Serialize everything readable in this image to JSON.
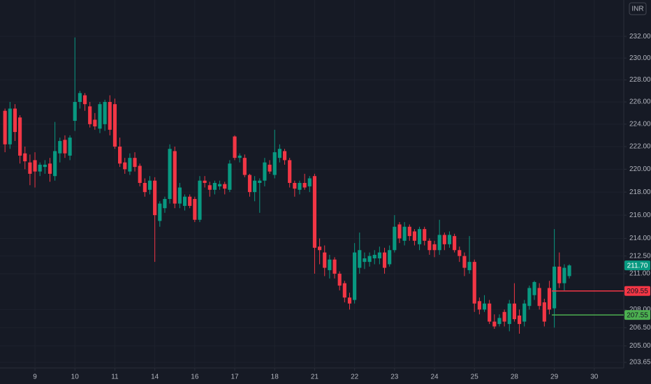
{
  "chart_data": {
    "type": "candlestick",
    "currency": "INR",
    "log_scale": true,
    "grid": true,
    "up_color": "#089981",
    "down_color": "#f23645",
    "xlim": [
      -1,
      123.9
    ],
    "ylim": [
      203.2,
      235.4
    ],
    "yticks": [
      {
        "value": 232,
        "label": "232.00"
      },
      {
        "value": 230,
        "label": "230.00"
      },
      {
        "value": 228,
        "label": "228.00"
      },
      {
        "value": 226,
        "label": "226.00"
      },
      {
        "value": 224,
        "label": "224.00"
      },
      {
        "value": 222,
        "label": "222.00"
      },
      {
        "value": 220,
        "label": "220.00"
      },
      {
        "value": 218,
        "label": "218.00"
      },
      {
        "value": 216,
        "label": "216.00"
      },
      {
        "value": 214,
        "label": "214.00"
      },
      {
        "value": 212.5,
        "label": "212.50"
      },
      {
        "value": 211,
        "label": "211.00"
      },
      {
        "value": 208,
        "label": "208.00"
      },
      {
        "value": 206.5,
        "label": "206.50"
      },
      {
        "value": 205,
        "label": "205.00"
      },
      {
        "value": 203.65,
        "label": "203.65"
      }
    ],
    "xticks": [
      {
        "value": 6,
        "label": "9"
      },
      {
        "value": 14,
        "label": "10"
      },
      {
        "value": 22,
        "label": "11"
      },
      {
        "value": 30,
        "label": "14"
      },
      {
        "value": 38,
        "label": "16"
      },
      {
        "value": 46,
        "label": "17"
      },
      {
        "value": 54,
        "label": "18"
      },
      {
        "value": 62,
        "label": "21"
      },
      {
        "value": 70,
        "label": "22"
      },
      {
        "value": 78,
        "label": "23"
      },
      {
        "value": 86,
        "label": "24"
      },
      {
        "value": 94,
        "label": "25"
      },
      {
        "value": 102,
        "label": "28"
      },
      {
        "value": 110,
        "label": "29"
      },
      {
        "value": 118,
        "label": "30"
      }
    ],
    "candles": [
      [
        225.2,
        225.4,
        221.5,
        222.2
      ],
      [
        222.2,
        226,
        221.8,
        225.4
      ],
      [
        225.4,
        225.8,
        222.5,
        223.3
      ],
      [
        224.6,
        224.8,
        220.5,
        221.2
      ],
      [
        221.4,
        222,
        220,
        220.7
      ],
      [
        220.6,
        221.3,
        218.6,
        219.6
      ],
      [
        220.8,
        221.5,
        218.4,
        219.8
      ],
      [
        219.8,
        220.6,
        219.4,
        220.4
      ],
      [
        220.2,
        220.8,
        219.6,
        220.4
      ],
      [
        220.5,
        221,
        218.9,
        219.6
      ],
      [
        219.4,
        224.2,
        219,
        221.6
      ],
      [
        221.4,
        222.8,
        220.6,
        222.5
      ],
      [
        222.6,
        223,
        221,
        221.4
      ],
      [
        221.2,
        223,
        220.8,
        222.8
      ],
      [
        224.3,
        231.9,
        223.4,
        226
      ],
      [
        226,
        227,
        225.4,
        226.8
      ],
      [
        226.6,
        226.8,
        225.2,
        225.8
      ],
      [
        225.6,
        226,
        223.7,
        224
      ],
      [
        224.4,
        225,
        223.5,
        223.8
      ],
      [
        223.6,
        226,
        223.2,
        225.8
      ],
      [
        224,
        226.2,
        223.4,
        226
      ],
      [
        226,
        226.6,
        223,
        223.5
      ],
      [
        225.8,
        226.3,
        221.8,
        222
      ],
      [
        222,
        222.8,
        220.2,
        220.5
      ],
      [
        220.6,
        221,
        219.6,
        220
      ],
      [
        219.8,
        221.4,
        219.5,
        221
      ],
      [
        221,
        221.5,
        219.8,
        220.2
      ],
      [
        220.3,
        220.5,
        218.5,
        218.8
      ],
      [
        218.8,
        219.2,
        217.6,
        218
      ],
      [
        218.2,
        219.4,
        217.8,
        219
      ],
      [
        219,
        219.3,
        212,
        216
      ],
      [
        215.5,
        217.2,
        215,
        217
      ],
      [
        216.6,
        217.6,
        216.2,
        217.4
      ],
      [
        217.4,
        222.2,
        217,
        221.8
      ],
      [
        221.6,
        222,
        216.6,
        217
      ],
      [
        217,
        218.8,
        216.6,
        218.4
      ],
      [
        216.8,
        217.8,
        216.4,
        217.6
      ],
      [
        217.6,
        217.8,
        216.6,
        216.8
      ],
      [
        217.4,
        217.6,
        215.4,
        215.6
      ],
      [
        215.6,
        219.4,
        215.4,
        219
      ],
      [
        219,
        219.4,
        218.4,
        218.8
      ],
      [
        218.6,
        218.9,
        217.6,
        218.2
      ],
      [
        218.2,
        219,
        217.8,
        218.8
      ],
      [
        218.5,
        219,
        218.2,
        218.7
      ],
      [
        218.7,
        218.9,
        217.8,
        218.3
      ],
      [
        218.2,
        220.8,
        218,
        220.5
      ],
      [
        222.9,
        223,
        220.8,
        221
      ],
      [
        221,
        221.4,
        220.6,
        221.2
      ],
      [
        221,
        221.3,
        219.3,
        219.5
      ],
      [
        219.5,
        219.6,
        217.6,
        218
      ],
      [
        218,
        219.4,
        217.2,
        219
      ],
      [
        218.8,
        219.2,
        216.2,
        219
      ],
      [
        219,
        221,
        218.5,
        220.6
      ],
      [
        220.4,
        220.8,
        219.6,
        219.8
      ],
      [
        219.5,
        223.5,
        219.2,
        221.5
      ],
      [
        221,
        222.2,
        220.6,
        221.8
      ],
      [
        221.6,
        221.8,
        220.4,
        220.8
      ],
      [
        220.8,
        221,
        218.4,
        218.8
      ],
      [
        218.8,
        219,
        217.6,
        218.3
      ],
      [
        218.2,
        219,
        217.8,
        218.8
      ],
      [
        218.8,
        219.6,
        218.2,
        218.4
      ],
      [
        218.5,
        219.4,
        218,
        219.2
      ],
      [
        219.4,
        219.6,
        211,
        213.2
      ],
      [
        213.3,
        214,
        211.8,
        213
      ],
      [
        212.8,
        213.4,
        210.8,
        211.5
      ],
      [
        211.3,
        212.6,
        210.6,
        212.2
      ],
      [
        212.2,
        212.4,
        210.6,
        211
      ],
      [
        211,
        211.2,
        209.6,
        210
      ],
      [
        210.2,
        210.4,
        208.6,
        209
      ],
      [
        209,
        209.4,
        208,
        208.5
      ],
      [
        208.8,
        213.6,
        208.5,
        212.8
      ],
      [
        211.5,
        214.5,
        211,
        213
      ],
      [
        212,
        212.8,
        211.4,
        212.3
      ],
      [
        212,
        212.8,
        211.6,
        212.5
      ],
      [
        212.3,
        213,
        211.8,
        212.6
      ],
      [
        212.3,
        213.3,
        211.8,
        212.8
      ],
      [
        212.8,
        213.2,
        211,
        211.5
      ],
      [
        211.8,
        213.4,
        211.6,
        213
      ],
      [
        213,
        216,
        212.8,
        215
      ],
      [
        215.2,
        215.4,
        213.6,
        214
      ],
      [
        213.8,
        215.4,
        213.4,
        215
      ],
      [
        215,
        215.2,
        213.8,
        214.2
      ],
      [
        214.6,
        214.8,
        213.4,
        213.8
      ],
      [
        213.5,
        215,
        213,
        214.8
      ],
      [
        214.8,
        215,
        213.4,
        213.8
      ],
      [
        213.8,
        214,
        212.6,
        213
      ],
      [
        213.5,
        213.8,
        212.4,
        213
      ],
      [
        213,
        215.6,
        212.6,
        214.3
      ],
      [
        214.3,
        214.5,
        213,
        213.5
      ],
      [
        213.5,
        214.6,
        213.2,
        214.3
      ],
      [
        214.2,
        214.4,
        212.8,
        213
      ],
      [
        213,
        213.3,
        212,
        212.5
      ],
      [
        212.5,
        212.8,
        210.8,
        211.5
      ],
      [
        211.3,
        214.2,
        211,
        212
      ],
      [
        212,
        212.2,
        207.8,
        208.5
      ],
      [
        208.7,
        209,
        207.6,
        208
      ],
      [
        208,
        209.2,
        207.8,
        208.5
      ],
      [
        208.5,
        208.8,
        206.8,
        207
      ],
      [
        207,
        207.6,
        206.4,
        206.6
      ],
      [
        206.8,
        207.6,
        206.6,
        207.3
      ],
      [
        207.8,
        208,
        206.6,
        207
      ],
      [
        206.8,
        208.8,
        206.2,
        208.5
      ],
      [
        208.5,
        210.2,
        207,
        207.2
      ],
      [
        207.5,
        208,
        206,
        206.8
      ],
      [
        207,
        208.8,
        206.6,
        208.5
      ],
      [
        208.3,
        210,
        208,
        209.8
      ],
      [
        209.2,
        210.4,
        208.8,
        210.3
      ],
      [
        209.8,
        210.2,
        208,
        208.3
      ],
      [
        208.6,
        208.9,
        206.6,
        207
      ],
      [
        209.8,
        210.4,
        207.6,
        208
      ],
      [
        208.1,
        214.8,
        206.5,
        211.6
      ],
      [
        211.6,
        212.8,
        209.8,
        210.2
      ],
      [
        210.2,
        211.8,
        209.6,
        211.5
      ],
      [
        210.8,
        211.8,
        210.6,
        211.7
      ]
    ],
    "price_lines": [
      {
        "value": 209.55,
        "color": "#f23645"
      },
      {
        "value": 207.55,
        "color": "#4caf50"
      }
    ],
    "last_price": {
      "value": 211.7,
      "label": "211.70",
      "color": "#089981"
    }
  }
}
